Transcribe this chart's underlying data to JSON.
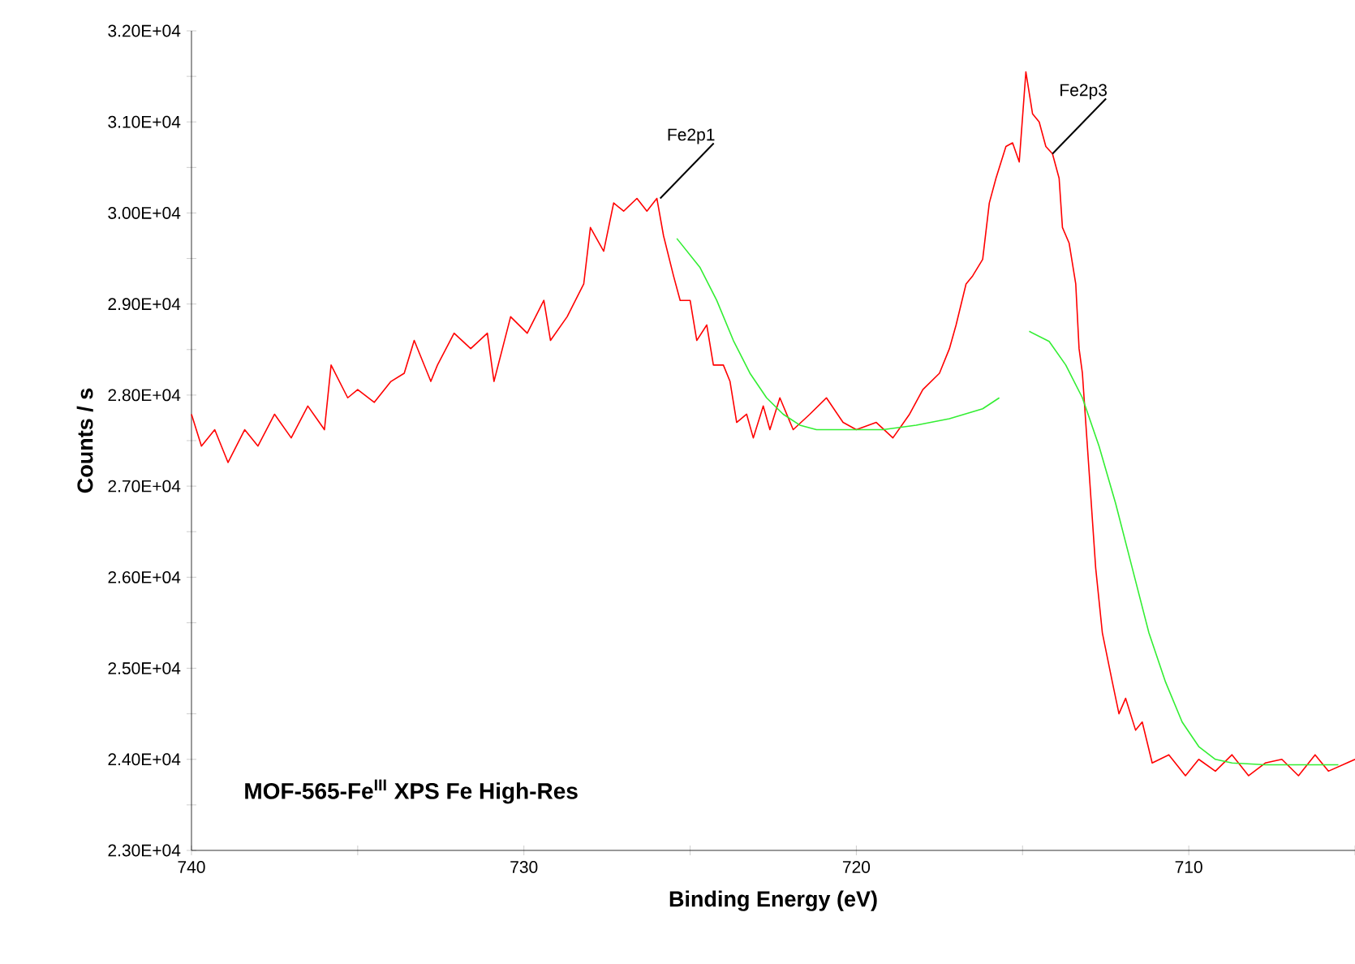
{
  "chart_data": {
    "type": "line",
    "xlabel": "Binding Energy (eV)",
    "ylabel": "Counts / s",
    "xlim": [
      740,
      705
    ],
    "ylim": [
      23000,
      32000
    ],
    "xticks": [
      740,
      {
        "value": 735,
        "label": null
      },
      730,
      {
        "value": 725,
        "label": null
      },
      720,
      {
        "value": 715,
        "label": null
      },
      710,
      {
        "value": 705,
        "label": null
      }
    ],
    "yticks": [
      {
        "value": 23000,
        "label": "2.30E+04"
      },
      {
        "value": 23500,
        "label": null
      },
      {
        "value": 24000,
        "label": "2.40E+04"
      },
      {
        "value": 24500,
        "label": null
      },
      {
        "value": 25000,
        "label": "2.50E+04"
      },
      {
        "value": 25500,
        "label": null
      },
      {
        "value": 26000,
        "label": "2.60E+04"
      },
      {
        "value": 26500,
        "label": null
      },
      {
        "value": 27000,
        "label": "2.70E+04"
      },
      {
        "value": 27500,
        "label": null
      },
      {
        "value": 28000,
        "label": "2.80E+04"
      },
      {
        "value": 28500,
        "label": null
      },
      {
        "value": 29000,
        "label": "2.90E+04"
      },
      {
        "value": 29500,
        "label": null
      },
      {
        "value": 30000,
        "label": "3.00E+04"
      },
      {
        "value": 30500,
        "label": null
      },
      {
        "value": 31000,
        "label": "3.10E+04"
      },
      {
        "value": 31500,
        "label": null
      },
      {
        "value": 32000,
        "label": "3.20E+04"
      }
    ],
    "series": [
      {
        "color": "#ff0000",
        "x": [
          740.0,
          739.7,
          739.3,
          738.9,
          738.4,
          738.0,
          737.5,
          737.0,
          736.5,
          736.0,
          735.8,
          735.3,
          735.0,
          734.5,
          734.0,
          733.6,
          733.3,
          732.8,
          732.6,
          732.1,
          731.6,
          731.1,
          730.9,
          730.4,
          729.9,
          729.4,
          729.2,
          728.7,
          728.2,
          728.0,
          727.6,
          727.3,
          727.0,
          726.6,
          726.3,
          726.0,
          725.8,
          725.5,
          725.3,
          725.0,
          724.8,
          724.5,
          724.3,
          724.0,
          723.8,
          723.6,
          723.3,
          723.1,
          722.8,
          722.6,
          722.3,
          721.9,
          721.4,
          720.9,
          720.4,
          720.0,
          719.4,
          718.9,
          718.4,
          718.0,
          717.5,
          717.2,
          717.0,
          716.7,
          716.5,
          716.2,
          716.0,
          715.8,
          715.5,
          715.3,
          715.1,
          714.9,
          714.7,
          714.5,
          714.3,
          714.1,
          713.9,
          713.8,
          713.6,
          713.4,
          713.3,
          713.2,
          713.0,
          712.8,
          712.6,
          712.3,
          712.1,
          711.9,
          711.6,
          711.4,
          711.1,
          710.6,
          710.1,
          709.7,
          709.2,
          708.7,
          708.2,
          707.7,
          707.2,
          706.7,
          706.2,
          705.8,
          705.0
        ],
        "values": [
          27790,
          27440,
          27620,
          27260,
          27620,
          27440,
          27790,
          27530,
          27880,
          27620,
          28330,
          27970,
          28060,
          27920,
          28150,
          28240,
          28600,
          28150,
          28330,
          28680,
          28510,
          28680,
          28150,
          28860,
          28680,
          29040,
          28600,
          28860,
          29220,
          29840,
          29580,
          30110,
          30020,
          30160,
          30020,
          30160,
          29750,
          29310,
          29040,
          29040,
          28600,
          28770,
          28330,
          28330,
          28150,
          27700,
          27790,
          27530,
          27880,
          27620,
          27970,
          27620,
          27790,
          27970,
          27700,
          27620,
          27700,
          27530,
          27790,
          28060,
          28240,
          28510,
          28770,
          29220,
          29310,
          29490,
          30110,
          30380,
          30730,
          30770,
          30560,
          31550,
          31090,
          31000,
          30730,
          30650,
          30380,
          29840,
          29670,
          29220,
          28510,
          28240,
          27170,
          26100,
          25390,
          24850,
          24500,
          24670,
          24320,
          24410,
          23960,
          24050,
          23820,
          24000,
          23870,
          24050,
          23820,
          23960,
          24000,
          23820,
          24050,
          23870,
          24000
        ]
      },
      {
        "color": "#33ee33",
        "x": [
          725.4,
          724.7,
          724.2,
          723.7,
          723.2,
          722.7,
          722.2,
          721.7,
          721.2,
          720.2,
          719.2,
          718.2,
          717.2,
          716.2,
          715.7
        ],
        "values": [
          29720,
          29400,
          29040,
          28600,
          28240,
          27970,
          27790,
          27670,
          27620,
          27620,
          27620,
          27670,
          27740,
          27850,
          27970
        ]
      },
      {
        "color": "#33ee33",
        "x": [
          714.8,
          714.2,
          713.7,
          713.2,
          712.7,
          712.2,
          711.7,
          711.2,
          710.7,
          710.2,
          709.7,
          709.2,
          708.7,
          707.7,
          706.7,
          705.5
        ],
        "values": [
          28700,
          28590,
          28330,
          27970,
          27440,
          26810,
          26100,
          25390,
          24850,
          24410,
          24140,
          24000,
          23960,
          23940,
          23940,
          23940
        ]
      }
    ],
    "annotations": [
      {
        "text": "Fe2p1",
        "x": 725.9,
        "y": 30160
      },
      {
        "text": "Fe2p3",
        "x": 714.1,
        "y": 30650
      },
      "**MOF-565-Fe$^{III}$ XPS Fe High-Res**"
    ]
  }
}
